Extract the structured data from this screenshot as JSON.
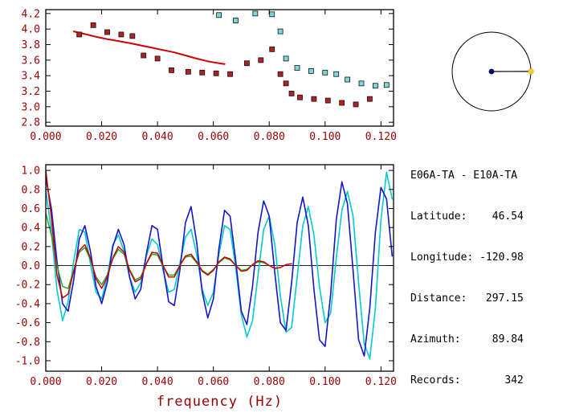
{
  "colors": {
    "axis": "#000000",
    "tick_text": "#990000",
    "zero_line": "#000000"
  },
  "info_panel": {
    "title": "E06A-TA - E10A-TA",
    "lines": [
      "Latitude:    46.54",
      "Longitude: -120.98",
      "Distance:   297.15",
      "Azimuth:     89.84",
      "Records:       342"
    ]
  },
  "azimuth_dial": {
    "azimuth_deg": 89.84,
    "circle_color": "#000000",
    "line_color": "#000000",
    "center_dot_color": "#000066",
    "station_dot_color": "#ffd400"
  },
  "chart_data": [
    {
      "type": "scatter",
      "panel": "dispersion",
      "title": "",
      "xlabel": "",
      "ylabel": "",
      "xlim": [
        0,
        0.1245
      ],
      "ylim": [
        2.75,
        4.25
      ],
      "grid": false,
      "x_ticks": [
        {
          "v": 0.0,
          "t": "0.000"
        },
        {
          "v": 0.02,
          "t": "0.020"
        },
        {
          "v": 0.04,
          "t": "0.040"
        },
        {
          "v": 0.06,
          "t": "0.060"
        },
        {
          "v": 0.08,
          "t": "0.080"
        },
        {
          "v": 0.1,
          "t": "0.100"
        },
        {
          "v": 0.12,
          "t": "0.120"
        }
      ],
      "y_ticks": [
        {
          "v": 2.8,
          "t": "2.8"
        },
        {
          "v": 3.0,
          "t": "3.0"
        },
        {
          "v": 3.2,
          "t": "3.2"
        },
        {
          "v": 3.4,
          "t": "3.4"
        },
        {
          "v": 3.6,
          "t": "3.6"
        },
        {
          "v": 3.8,
          "t": "3.8"
        },
        {
          "v": 4.0,
          "t": "4.0"
        },
        {
          "v": 4.2,
          "t": "4.2"
        }
      ],
      "series": [
        {
          "name": "reference-dispersion-curve",
          "type": "line",
          "color": "#cc0000",
          "width": 2,
          "points": [
            [
              0.01,
              3.97
            ],
            [
              0.014,
              3.935
            ],
            [
              0.018,
              3.9
            ],
            [
              0.022,
              3.87
            ],
            [
              0.026,
              3.845
            ],
            [
              0.03,
              3.82
            ],
            [
              0.034,
              3.79
            ],
            [
              0.038,
              3.76
            ],
            [
              0.042,
              3.73
            ],
            [
              0.046,
              3.7
            ],
            [
              0.05,
              3.66
            ],
            [
              0.054,
              3.62
            ],
            [
              0.058,
              3.585
            ],
            [
              0.062,
              3.56
            ],
            [
              0.064,
              3.55
            ]
          ]
        },
        {
          "name": "red-velocity-measurements",
          "type": "scatter",
          "marker": "square",
          "color": "#b22222",
          "points": [
            [
              0.012,
              3.93
            ],
            [
              0.017,
              4.05
            ],
            [
              0.022,
              3.96
            ],
            [
              0.027,
              3.93
            ],
            [
              0.031,
              3.91
            ],
            [
              0.035,
              3.66
            ],
            [
              0.04,
              3.62
            ],
            [
              0.045,
              3.47
            ],
            [
              0.051,
              3.45
            ],
            [
              0.056,
              3.44
            ],
            [
              0.061,
              3.43
            ],
            [
              0.066,
              3.42
            ],
            [
              0.072,
              3.56
            ],
            [
              0.077,
              3.6
            ],
            [
              0.081,
              3.74
            ],
            [
              0.084,
              3.42
            ],
            [
              0.086,
              3.3
            ],
            [
              0.088,
              3.17
            ],
            [
              0.091,
              3.12
            ],
            [
              0.096,
              3.1
            ],
            [
              0.101,
              3.08
            ],
            [
              0.106,
              3.05
            ],
            [
              0.111,
              3.03
            ],
            [
              0.116,
              3.1
            ]
          ]
        },
        {
          "name": "cyan-velocity-measurements",
          "type": "scatter",
          "marker": "square",
          "color": "#7fd8d8",
          "points": [
            [
              0.062,
              4.18
            ],
            [
              0.068,
              4.11
            ],
            [
              0.075,
              4.2
            ],
            [
              0.081,
              4.19
            ],
            [
              0.084,
              3.97
            ],
            [
              0.086,
              3.62
            ],
            [
              0.09,
              3.5
            ],
            [
              0.095,
              3.46
            ],
            [
              0.1,
              3.44
            ],
            [
              0.104,
              3.42
            ],
            [
              0.108,
              3.35
            ],
            [
              0.113,
              3.3
            ],
            [
              0.118,
              3.27
            ],
            [
              0.122,
              3.28
            ]
          ]
        }
      ]
    },
    {
      "type": "line",
      "panel": "cross-spectrum",
      "title": "",
      "xlabel": "frequency (Hz)",
      "ylabel": "",
      "xlim": [
        0,
        0.1245
      ],
      "ylim": [
        -1.11,
        1.06
      ],
      "grid": false,
      "zero_line": true,
      "x_ticks": [
        {
          "v": 0.0,
          "t": "0.000"
        },
        {
          "v": 0.02,
          "t": "0.020"
        },
        {
          "v": 0.04,
          "t": "0.040"
        },
        {
          "v": 0.06,
          "t": "0.060"
        },
        {
          "v": 0.08,
          "t": "0.080"
        },
        {
          "v": 0.1,
          "t": "0.100"
        },
        {
          "v": 0.12,
          "t": "0.120"
        }
      ],
      "y_ticks": [
        {
          "v": -1.0,
          "t": "-1.0"
        },
        {
          "v": -0.8,
          "t": "-0.8"
        },
        {
          "v": -0.6,
          "t": "-0.6"
        },
        {
          "v": -0.4,
          "t": "-0.4"
        },
        {
          "v": -0.2,
          "t": "-0.2"
        },
        {
          "v": 0.0,
          "t": "0.0"
        },
        {
          "v": 0.2,
          "t": "0.2"
        },
        {
          "v": 0.4,
          "t": "0.4"
        },
        {
          "v": 0.6,
          "t": "0.6"
        },
        {
          "v": 0.8,
          "t": "0.8"
        },
        {
          "v": 1.0,
          "t": "1.0"
        }
      ],
      "series": [
        {
          "name": "raw-spectrum-cyan",
          "type": "line",
          "color": "#00cccc",
          "width": 1.6,
          "x_start": 0,
          "x_step": 0.002,
          "y": [
            0.8,
            0.35,
            -0.25,
            -0.58,
            -0.38,
            0.05,
            0.38,
            0.35,
            0.02,
            -0.28,
            -0.35,
            -0.12,
            0.22,
            0.32,
            0.15,
            -0.12,
            -0.28,
            -0.18,
            0.1,
            0.28,
            0.22,
            -0.05,
            -0.28,
            -0.25,
            0.02,
            0.3,
            0.38,
            0.12,
            -0.25,
            -0.42,
            -0.28,
            0.12,
            0.42,
            0.38,
            -0.02,
            -0.52,
            -0.75,
            -0.58,
            -0.1,
            0.38,
            0.52,
            0.22,
            -0.32,
            -0.7,
            -0.65,
            -0.12,
            0.42,
            0.62,
            0.32,
            -0.22,
            -0.6,
            -0.5,
            0.08,
            0.58,
            0.78,
            0.52,
            -0.18,
            -0.82,
            -0.98,
            -0.45,
            0.48,
            0.98,
            0.7
          ]
        },
        {
          "name": "raw-spectrum-blue",
          "type": "line",
          "color": "#1515cc",
          "width": 1.6,
          "x_start": 0,
          "x_step": 0.002,
          "y": [
            0.92,
            0.6,
            0.05,
            -0.4,
            -0.48,
            -0.15,
            0.28,
            0.42,
            0.15,
            -0.22,
            -0.4,
            -0.18,
            0.2,
            0.38,
            0.22,
            -0.12,
            -0.35,
            -0.25,
            0.12,
            0.42,
            0.38,
            -0.02,
            -0.38,
            -0.42,
            -0.05,
            0.45,
            0.62,
            0.25,
            -0.28,
            -0.55,
            -0.35,
            0.18,
            0.58,
            0.52,
            0.05,
            -0.48,
            -0.62,
            -0.22,
            0.35,
            0.68,
            0.52,
            -0.08,
            -0.6,
            -0.68,
            -0.18,
            0.45,
            0.72,
            0.42,
            -0.25,
            -0.78,
            -0.85,
            -0.3,
            0.48,
            0.88,
            0.65,
            -0.05,
            -0.78,
            -0.95,
            -0.45,
            0.35,
            0.82,
            0.7,
            0.1
          ]
        },
        {
          "name": "smoothed-spectrum-green",
          "type": "line",
          "color": "#22aa22",
          "width": 1.5,
          "x_start": 0,
          "x_step": 0.002,
          "y": [
            0.55,
            0.32,
            0.0,
            -0.22,
            -0.24,
            -0.05,
            0.14,
            0.19,
            0.06,
            -0.12,
            -0.2,
            -0.1,
            0.07,
            0.17,
            0.12,
            -0.04,
            -0.15,
            -0.12,
            0.02,
            0.12,
            0.11,
            -0.01,
            -0.1,
            -0.1,
            0.0,
            0.09,
            0.1,
            0.03,
            -0.05,
            -0.09,
            -0.04,
            0.03,
            0.08,
            0.06,
            0.0,
            -0.05,
            -0.04,
            0.01,
            0.04,
            0.03,
            0.0
          ]
        },
        {
          "name": "smoothed-spectrum-red",
          "type": "line",
          "color": "#cc0000",
          "width": 1.5,
          "x_start": 0,
          "x_step": 0.002,
          "y": [
            1.0,
            0.5,
            -0.1,
            -0.34,
            -0.3,
            -0.06,
            0.16,
            0.22,
            0.08,
            -0.14,
            -0.24,
            -0.12,
            0.08,
            0.2,
            0.14,
            -0.05,
            -0.17,
            -0.14,
            0.02,
            0.14,
            0.13,
            0.0,
            -0.12,
            -0.12,
            0.0,
            0.1,
            0.12,
            0.04,
            -0.06,
            -0.1,
            -0.05,
            0.04,
            0.09,
            0.07,
            0.0,
            -0.06,
            -0.05,
            0.01,
            0.05,
            0.04,
            0.0,
            -0.03,
            -0.02,
            0.01,
            0.02
          ]
        }
      ]
    }
  ]
}
